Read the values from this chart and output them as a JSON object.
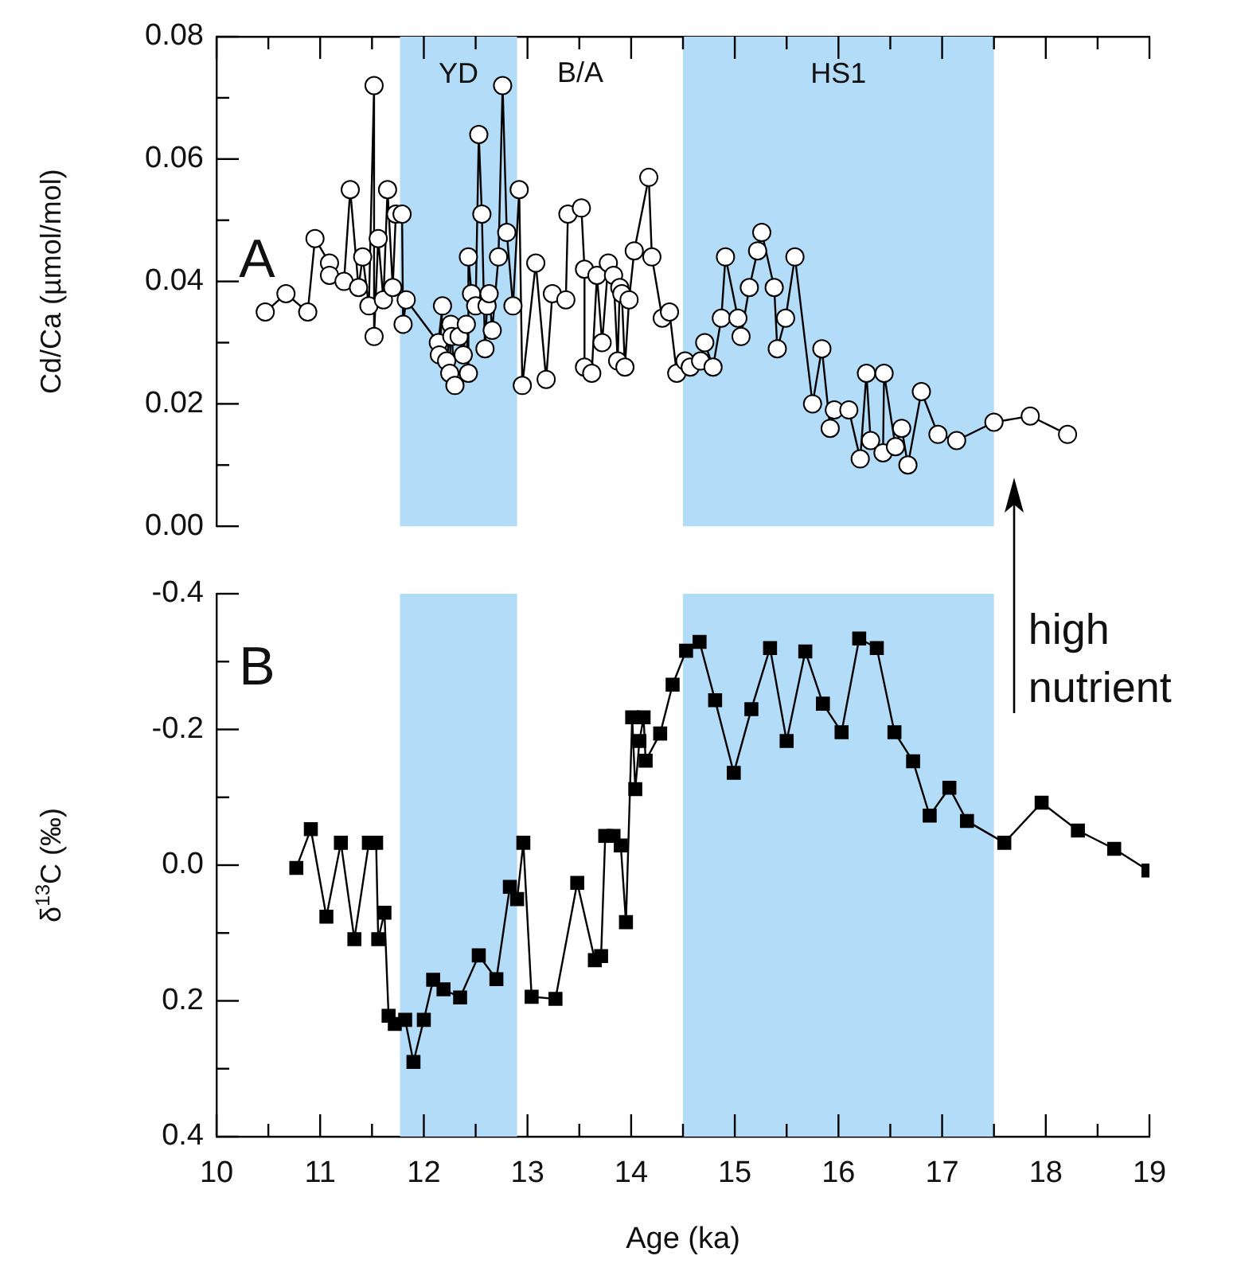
{
  "chart_data": [
    {
      "type": "line",
      "ylabel": "Cd/Ca (µmol/mol)",
      "marker": "circle",
      "tick_labels": "y",
      "xlim": [
        10,
        19
      ],
      "xticks": [
        10,
        {
          "value": 10.5,
          "label": null
        },
        11,
        {
          "value": 11.5,
          "label": null
        },
        12,
        {
          "value": 12.5,
          "label": null
        },
        13,
        {
          "value": 13.5,
          "label": null
        },
        14,
        {
          "value": 14.5,
          "label": null
        },
        15,
        {
          "value": 15.5,
          "label": null
        },
        16,
        {
          "value": 16.5,
          "label": null
        },
        17,
        {
          "value": 17.5,
          "label": null
        },
        18,
        {
          "value": 18.5,
          "label": null
        },
        19
      ],
      "ylim": [
        0,
        0.08
      ],
      "yticks": [
        {
          "value": 0,
          "label": "0.00"
        },
        {
          "value": 0.01,
          "label": null
        },
        {
          "value": 0.02,
          "label": "0.02"
        },
        {
          "value": 0.03,
          "label": null
        },
        {
          "value": 0.04,
          "label": "0.04"
        },
        {
          "value": 0.05,
          "label": null
        },
        {
          "value": 0.06,
          "label": "0.06"
        },
        {
          "value": 0.07,
          "label": null
        },
        {
          "value": 0.08,
          "label": "0.08"
        }
      ],
      "bands": [
        {
          "axis": "x",
          "from": 11.77,
          "to": 12.9,
          "label": "YD",
          "color": "#b3dcf8"
        },
        {
          "axis": "x",
          "from": 14.5,
          "to": 17.5,
          "label": "HS1",
          "color": "#b3dcf8"
        }
      ],
      "annotations": [
        "A",
        "B/A"
      ],
      "series": [
        {
          "color": "#000000",
          "x": [
            10.47,
            10.67,
            10.88,
            10.95,
            11.09,
            11.09,
            11.23,
            11.29,
            11.37,
            11.41,
            11.47,
            11.52,
            11.52,
            11.56,
            11.61,
            11.65,
            11.7,
            11.73,
            11.79,
            11.8,
            11.83,
            12.14,
            12.18,
            12.15,
            12.22,
            12.26,
            12.25,
            12.3,
            12.27,
            12.34,
            12.38,
            12.41,
            12.43,
            12.43,
            12.46,
            12.5,
            12.53,
            12.56,
            12.59,
            12.61,
            12.63,
            12.66,
            12.72,
            12.76,
            12.8,
            12.86,
            12.92,
            12.95,
            13.08,
            13.18,
            13.24,
            13.37,
            13.39,
            13.52,
            13.55,
            13.55,
            13.62,
            13.67,
            13.72,
            13.78,
            13.83,
            13.87,
            13.89,
            13.91,
            13.94,
            13.98,
            14.03,
            14.17,
            14.2,
            14.3,
            14.37,
            14.44,
            14.52,
            14.57,
            14.67,
            14.71,
            14.79,
            14.87,
            14.91,
            15.03,
            15.06,
            15.14,
            15.22,
            15.26,
            15.38,
            15.41,
            15.49,
            15.58,
            15.75,
            15.84,
            15.92,
            15.96,
            16.1,
            16.21,
            16.27,
            16.31,
            16.43,
            16.44,
            16.55,
            16.61,
            16.67,
            16.8,
            16.96,
            17.14,
            17.5,
            17.85,
            18.21
          ],
          "values": [
            0.035,
            0.038,
            0.035,
            0.047,
            0.043,
            0.041,
            0.04,
            0.055,
            0.039,
            0.044,
            0.036,
            0.072,
            0.031,
            0.047,
            0.037,
            0.055,
            0.039,
            0.051,
            0.051,
            0.033,
            0.037,
            0.03,
            0.036,
            0.028,
            0.027,
            0.033,
            0.025,
            0.023,
            0.031,
            0.031,
            0.028,
            0.033,
            0.025,
            0.044,
            0.038,
            0.036,
            0.064,
            0.051,
            0.029,
            0.036,
            0.038,
            0.032,
            0.044,
            0.072,
            0.048,
            0.036,
            0.055,
            0.023,
            0.043,
            0.024,
            0.038,
            0.037,
            0.051,
            0.052,
            0.042,
            0.026,
            0.025,
            0.041,
            0.03,
            0.043,
            0.041,
            0.027,
            0.039,
            0.038,
            0.026,
            0.037,
            0.045,
            0.057,
            0.044,
            0.034,
            0.035,
            0.025,
            0.027,
            0.026,
            0.027,
            0.03,
            0.026,
            0.034,
            0.044,
            0.034,
            0.031,
            0.039,
            0.045,
            0.048,
            0.039,
            0.029,
            0.034,
            0.044,
            0.02,
            0.029,
            0.016,
            0.019,
            0.019,
            0.011,
            0.025,
            0.014,
            0.012,
            0.025,
            0.013,
            0.016,
            0.01,
            0.022,
            0.015,
            0.014,
            0.017,
            0.018,
            0.015
          ]
        }
      ]
    },
    {
      "type": "line",
      "ylabel": "δ$^{13}$C (‰)",
      "xlabel": "Age (ka)",
      "marker": "square",
      "xlim": [
        10,
        19
      ],
      "xticks": [
        10,
        {
          "value": 10.5,
          "label": null
        },
        11,
        {
          "value": 11.5,
          "label": null
        },
        12,
        {
          "value": 12.5,
          "label": null
        },
        13,
        {
          "value": 13.5,
          "label": null
        },
        14,
        {
          "value": 14.5,
          "label": null
        },
        15,
        {
          "value": 15.5,
          "label": null
        },
        16,
        {
          "value": 16.5,
          "label": null
        },
        17,
        {
          "value": 17.5,
          "label": null
        },
        18,
        {
          "value": 18.5,
          "label": null
        },
        19
      ],
      "ylim": [
        0.4,
        -0.4
      ],
      "yticks": [
        {
          "value": -0.4,
          "label": "-0.4"
        },
        {
          "value": -0.3,
          "label": null
        },
        {
          "value": -0.2,
          "label": "-0.2"
        },
        {
          "value": -0.1,
          "label": null
        },
        {
          "value": 0,
          "label": "0.0"
        },
        {
          "value": 0.1,
          "label": null
        },
        {
          "value": 0.2,
          "label": "0.2"
        },
        {
          "value": 0.3,
          "label": null
        },
        {
          "value": 0.4,
          "label": "0.4"
        }
      ],
      "bands": [
        {
          "axis": "x",
          "from": 11.77,
          "to": 12.9,
          "color": "#b3dcf8"
        },
        {
          "axis": "x",
          "from": 14.5,
          "to": 17.5,
          "color": "#b3dcf8"
        }
      ],
      "annotations": [
        "B",
        "high nutrient"
      ],
      "series": [
        {
          "color": "#000000",
          "x": [
            10.77,
            10.91,
            11.06,
            11.2,
            11.33,
            11.47,
            11.54,
            11.56,
            11.62,
            11.66,
            11.72,
            11.82,
            11.9,
            12.0,
            12.09,
            12.19,
            12.35,
            12.53,
            12.7,
            12.83,
            12.9,
            12.96,
            13.04,
            13.27,
            13.48,
            13.65,
            13.71,
            13.75,
            13.83,
            13.9,
            13.95,
            14.01,
            14.04,
            14.08,
            14.12,
            14.14,
            14.28,
            14.4,
            14.53,
            14.66,
            14.81,
            14.99,
            15.16,
            15.34,
            15.5,
            15.68,
            15.85,
            16.03,
            16.2,
            16.37,
            16.54,
            16.72,
            16.88,
            17.07,
            17.24,
            17.6,
            17.96,
            18.31,
            18.66,
            18.99
          ],
          "values": [
            0.004,
            -0.053,
            0.076,
            -0.033,
            0.109,
            -0.033,
            -0.033,
            0.109,
            0.07,
            0.222,
            0.234,
            0.228,
            0.29,
            0.228,
            0.169,
            0.183,
            0.195,
            0.133,
            0.168,
            0.032,
            0.05,
            -0.033,
            0.194,
            0.197,
            0.026,
            0.14,
            0.134,
            -0.043,
            -0.043,
            -0.029,
            0.084,
            -0.218,
            -0.112,
            -0.183,
            -0.218,
            -0.154,
            -0.194,
            -0.266,
            -0.316,
            -0.329,
            -0.243,
            -0.136,
            -0.23,
            -0.32,
            -0.183,
            -0.315,
            -0.238,
            -0.196,
            -0.334,
            -0.32,
            -0.196,
            -0.153,
            -0.073,
            -0.114,
            -0.065,
            -0.033,
            -0.092,
            -0.051,
            -0.024,
            0.008
          ]
        }
      ]
    }
  ]
}
